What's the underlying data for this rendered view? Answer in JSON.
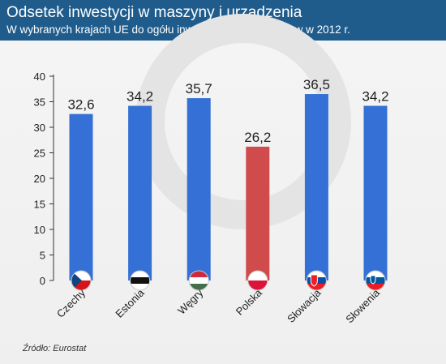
{
  "title": "Odsetek inwestycji w maszyny i urządzenia",
  "subtitle": "W wybranych krajach UE do ogółu inwestycji przedsiębiorstw w 2012 r.",
  "source": "Źródło: Eurostat",
  "colors": {
    "header": "#1f5c8c",
    "bar": "#3470d6",
    "highlight": "#d04b4b",
    "axis": "#333333"
  },
  "chart_data": {
    "type": "bar",
    "categories": [
      "Czechy",
      "Estonia",
      "Węgry",
      "Polska",
      "Słowacja",
      "Słowenia"
    ],
    "values": [
      32.6,
      34.2,
      35.7,
      26.2,
      36.5,
      34.2
    ],
    "value_labels": [
      "32,6",
      "34,2",
      "35,7",
      "26,2",
      "36,5",
      "34,2"
    ],
    "highlight": "Polska",
    "title": "Odsetek inwestycji w maszyny i urządzenia",
    "xlabel": "",
    "ylabel": "",
    "ylim": [
      0,
      40
    ],
    "yticks": [
      0,
      5,
      10,
      15,
      20,
      25,
      30,
      35,
      40
    ],
    "grid": false,
    "legend": "none",
    "flags": [
      "czech-flag-icon",
      "estonia-flag-icon",
      "hungary-flag-icon",
      "poland-flag-icon",
      "slovakia-flag-icon",
      "slovenia-flag-icon"
    ]
  }
}
